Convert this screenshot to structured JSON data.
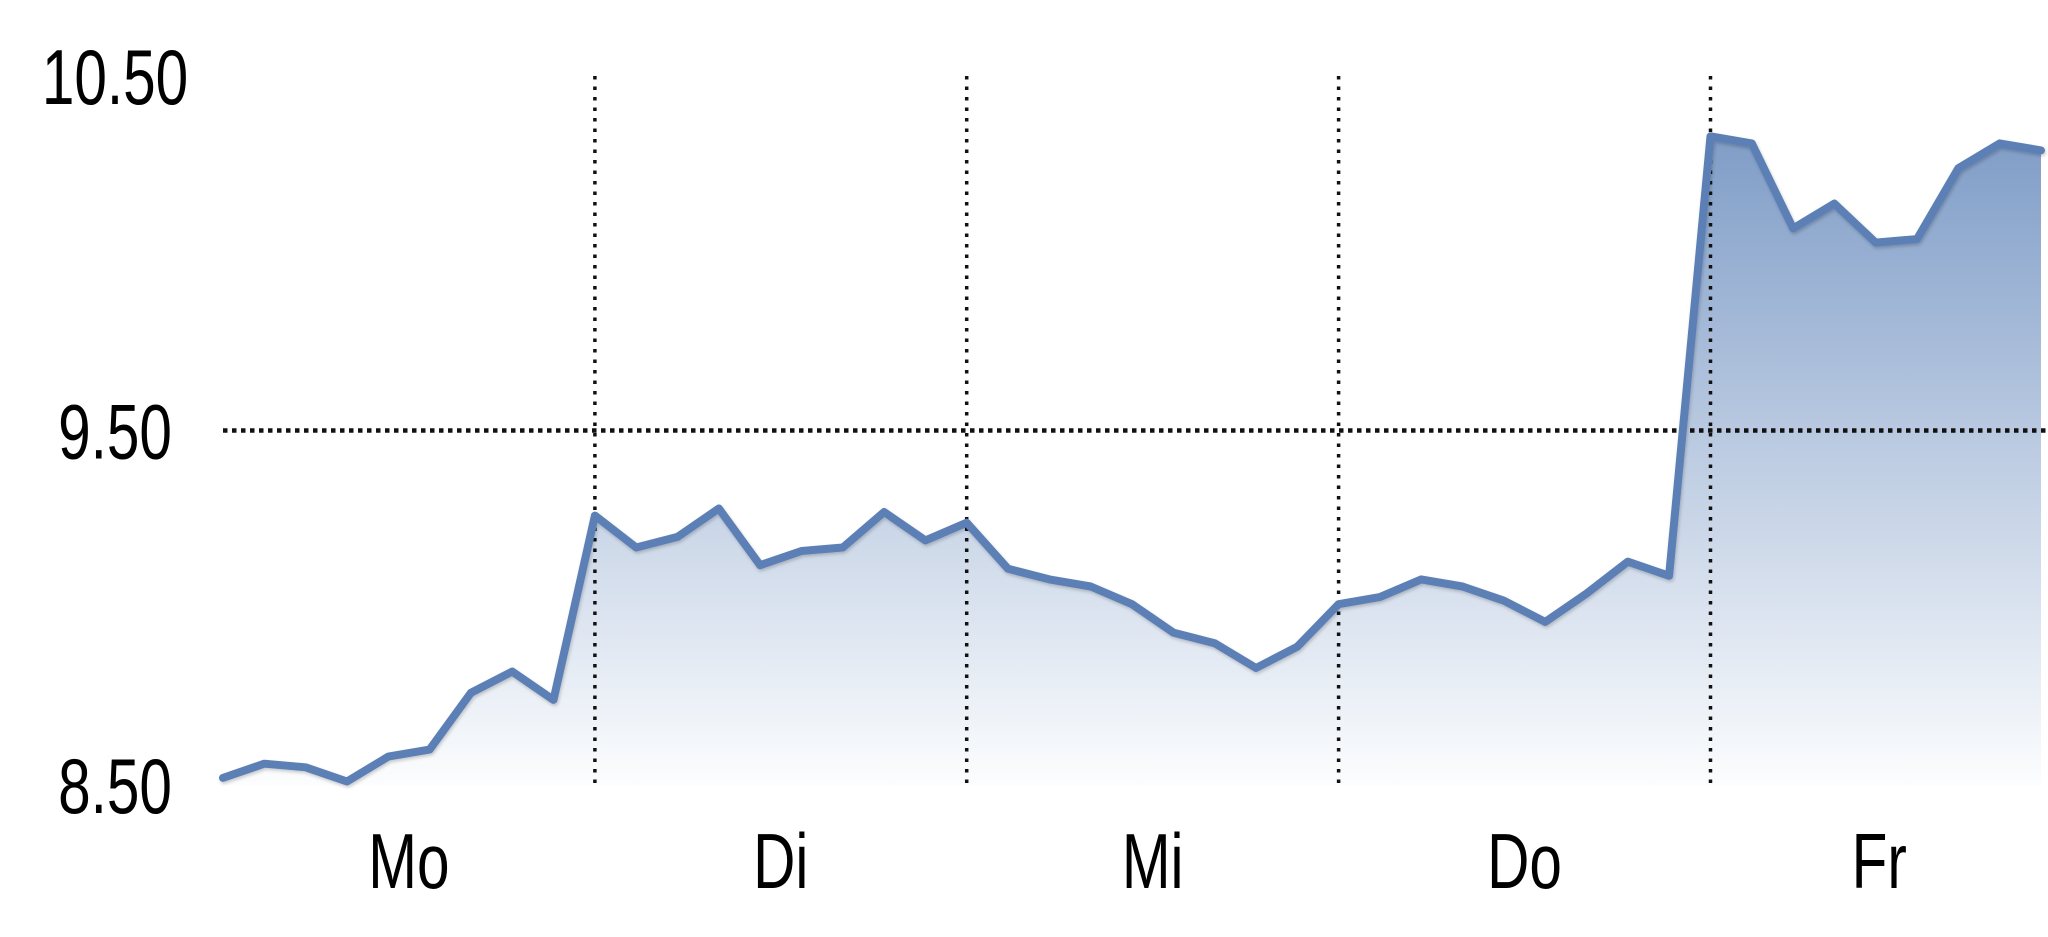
{
  "chart_data": {
    "type": "area",
    "categories": [
      "Mo",
      "Di",
      "Mi",
      "Do",
      "Fr"
    ],
    "points_per_category": 9,
    "values": [
      8.52,
      8.56,
      8.55,
      8.51,
      8.58,
      8.6,
      8.76,
      8.82,
      8.74,
      9.26,
      9.17,
      9.2,
      9.28,
      9.12,
      9.16,
      9.17,
      9.27,
      9.19,
      9.24,
      9.11,
      9.08,
      9.06,
      9.01,
      8.93,
      8.9,
      8.83,
      8.89,
      9.01,
      9.03,
      9.08,
      9.06,
      9.02,
      8.96,
      9.04,
      9.13,
      9.09,
      10.33,
      10.31,
      10.07,
      10.14,
      10.03,
      10.04,
      10.24,
      10.31,
      10.29
    ],
    "y_tick_labels": [
      "8.50",
      "9.50",
      "10.50"
    ],
    "y_tick_values": [
      8.5,
      9.5,
      10.5
    ],
    "ylim": [
      8.5,
      10.5
    ],
    "gridlines": {
      "style": "dotted",
      "horizontal_dotted_at": 9.5,
      "vertical_dotted_at_category_boundaries": true
    },
    "colors": {
      "line": "#5b80b5",
      "fill_top": "#7494c2",
      "fill_bottom": "#fcfdfe",
      "axis": "#000000",
      "grid_dots": "#111111",
      "labels": "#000000",
      "background": "#ffffff"
    }
  }
}
